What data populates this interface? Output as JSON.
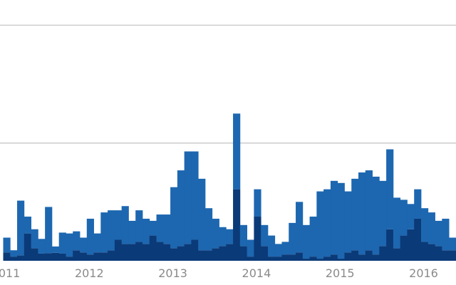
{
  "chart_data": {
    "type": "bar",
    "stacked": true,
    "grid": true,
    "legend": "none",
    "gridlines_y": [
      2800,
      5600
    ],
    "ylim": [
      0,
      6200
    ],
    "x_start": "2010.97",
    "x_step_months": 1,
    "x_ticks": [
      {
        "value": 2011,
        "label": "2011"
      },
      {
        "value": 2012,
        "label": "2012"
      },
      {
        "value": 2013,
        "label": "2013"
      },
      {
        "value": 2014,
        "label": "2014"
      },
      {
        "value": 2015,
        "label": "2015"
      },
      {
        "value": 2016,
        "label": "2016"
      }
    ],
    "colors": [
      "#0b3a78",
      "#1d67b0"
    ],
    "series": [
      {
        "values": [
          200,
          100,
          130,
          650,
          300,
          170,
          180,
          190,
          170,
          100,
          250,
          200,
          150,
          200,
          200,
          250,
          500,
          400,
          400,
          450,
          400,
          600,
          450,
          400,
          300,
          350,
          400,
          500,
          250,
          250,
          300,
          350,
          400,
          1700,
          350,
          100,
          1050,
          350,
          100,
          100,
          150,
          150,
          200,
          50,
          100,
          50,
          100,
          150,
          50,
          200,
          250,
          150,
          250,
          150,
          350,
          750,
          300,
          600,
          750,
          1000,
          450,
          400,
          350,
          250,
          250,
          300,
          100,
          900,
          400,
          400,
          550,
          800,
          300,
          1050,
          350,
          700,
          450,
          300,
          150
        ]
      },
      {
        "values": [
          350,
          150,
          1300,
          400,
          450,
          350,
          1100,
          150,
          500,
          550,
          450,
          350,
          850,
          450,
          950,
          950,
          700,
          900,
          550,
          750,
          600,
          350,
          650,
          700,
          1450,
          1800,
          2200,
          2100,
          1700,
          1000,
          700,
          450,
          350,
          1800,
          500,
          400,
          650,
          500,
          500,
          300,
          300,
          750,
          1200,
          800,
          950,
          1600,
          1600,
          1750,
          1800,
          1450,
          1700,
          1950,
          1900,
          1850,
          1550,
          1900,
          1200,
          850,
          600,
          700,
          800,
          750,
          600,
          750,
          300,
          200,
          1600,
          850,
          950,
          650,
          2050,
          800,
          1500,
          1050,
          950,
          1400,
          2300,
          1700,
          700
        ]
      }
    ]
  }
}
